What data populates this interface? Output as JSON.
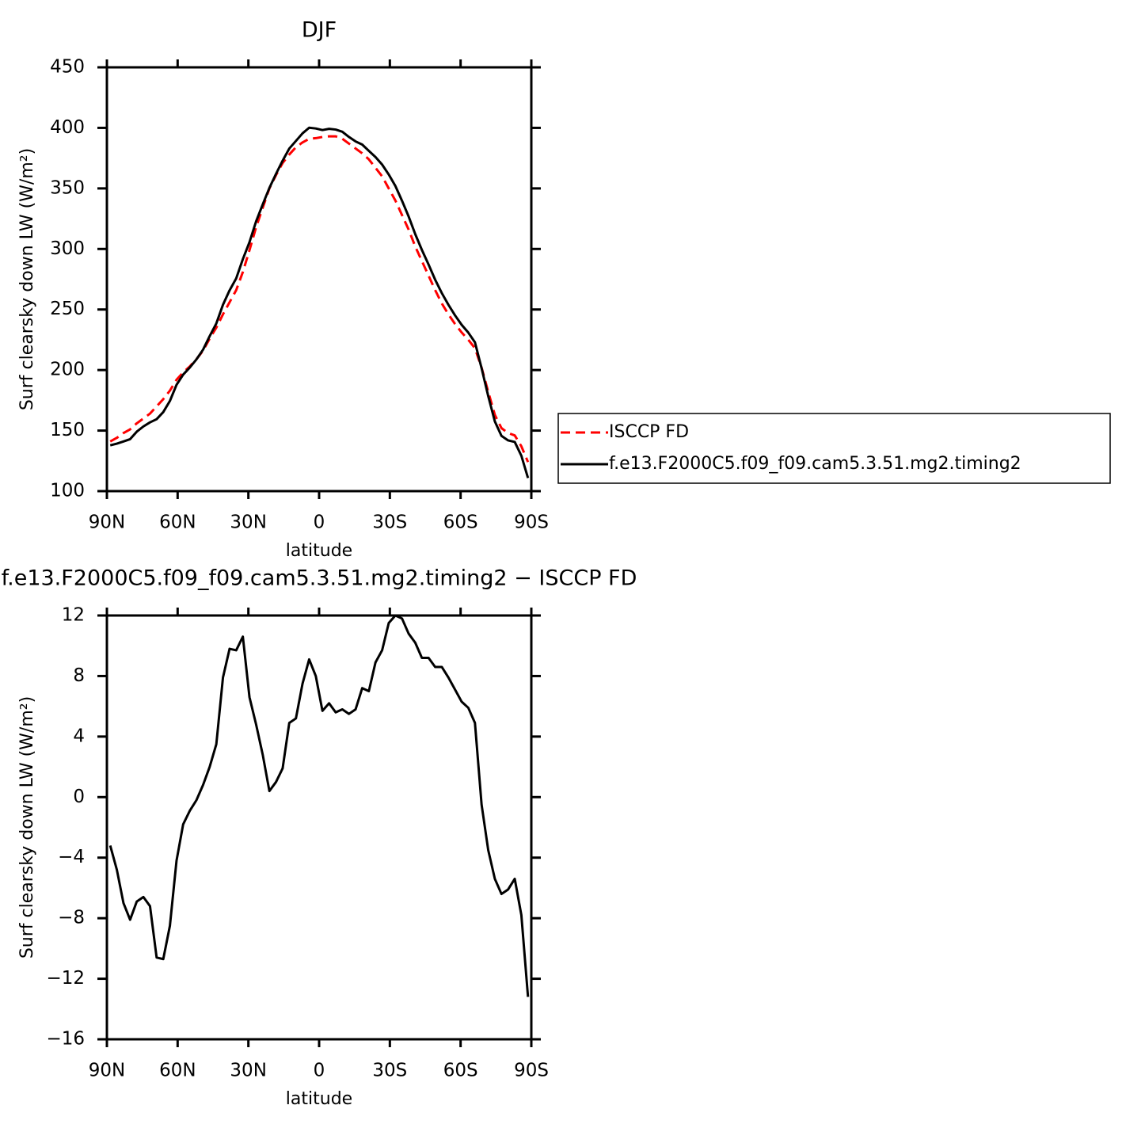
{
  "chart_data": [
    {
      "type": "line",
      "title": "DJF",
      "xlabel": "latitude",
      "ylabel": "Surf clearsky down LW (W/m²)",
      "x": [
        88.59,
        85.78,
        82.97,
        80.16,
        77.34,
        74.53,
        71.72,
        68.91,
        66.09,
        63.28,
        60.47,
        57.66,
        54.84,
        52.03,
        49.22,
        46.41,
        43.59,
        40.78,
        37.97,
        35.16,
        32.34,
        29.53,
        26.72,
        23.91,
        21.09,
        18.28,
        15.47,
        12.66,
        9.84,
        7.03,
        4.22,
        1.41,
        -1.41,
        -4.22,
        -7.03,
        -9.84,
        -12.66,
        -15.47,
        -18.28,
        -21.09,
        -23.91,
        -26.72,
        -29.53,
        -32.34,
        -35.16,
        -37.97,
        -40.78,
        -43.59,
        -46.41,
        -49.22,
        -52.03,
        -54.84,
        -57.66,
        -60.47,
        -63.28,
        -66.09,
        -68.91,
        -71.72,
        -74.53,
        -77.34,
        -80.16,
        -82.97,
        -85.78,
        -88.59
      ],
      "series": [
        {
          "name": "ISCCP FD",
          "color": "#ff0000",
          "dashed": true,
          "values": [
            141,
            144,
            148,
            151,
            156,
            160,
            164,
            170,
            176,
            183,
            192,
            198,
            203,
            209,
            216,
            226,
            235,
            246,
            256,
            266,
            281,
            299,
            318,
            334,
            350,
            361,
            371,
            378,
            384,
            388,
            391,
            391.5,
            392.5,
            393,
            393,
            391,
            387,
            383,
            379,
            374,
            367,
            360,
            350,
            340,
            328,
            316,
            302,
            290,
            278,
            266,
            255,
            246,
            238,
            231,
            225,
            218,
            202,
            182,
            163,
            152,
            148,
            146,
            137,
            124
          ]
        },
        {
          "name": "f.e13.F2000C5.f09_f09.cam5.3.51.mg2.timing2",
          "color": "#000000",
          "dashed": false,
          "values": [
            137.8,
            139.2,
            141.0,
            142.9,
            149.1,
            153.4,
            156.8,
            159.4,
            165.3,
            174.5,
            187.8,
            196.2,
            202.1,
            208.8,
            216.8,
            228.0,
            238.5,
            253.9,
            265.8,
            275.7,
            291.6,
            305.6,
            322.8,
            336.8,
            350.4,
            362.0,
            372.9,
            382.9,
            389.2,
            395.5,
            400.1,
            399.5,
            398.2,
            399.2,
            398.6,
            396.8,
            392.5,
            388.8,
            386.2,
            381.0,
            375.9,
            369.7,
            361.5,
            352.0,
            339.8,
            326.8,
            312.2,
            299.2,
            287.2,
            274.6,
            263.6,
            253.9,
            245.1,
            237.3,
            230.9,
            222.9,
            201.5,
            178.5,
            157.6,
            145.6,
            141.9,
            140.6,
            129.2,
            110.8
          ]
        }
      ],
      "xlim": [
        90,
        -90
      ],
      "xticks": [
        {
          "value": 90,
          "label": "90N"
        },
        {
          "value": 60,
          "label": "60N"
        },
        {
          "value": 30,
          "label": "30N"
        },
        0,
        {
          "value": -30,
          "label": "30S"
        },
        {
          "value": -60,
          "label": "60S"
        },
        {
          "value": -90,
          "label": "90S"
        }
      ],
      "ylim": [
        100,
        450
      ],
      "yticks": [
        100,
        150,
        200,
        250,
        300,
        350,
        400,
        450
      ],
      "legend": "right"
    },
    {
      "type": "line",
      "title": "f.e13.F2000C5.f09_f09.cam5.3.51.mg2.timing2 − ISCCP FD",
      "xlabel": "latitude",
      "ylabel": "Surf clearsky down LW (W/m²)",
      "x": [
        88.59,
        85.78,
        82.97,
        80.16,
        77.34,
        74.53,
        71.72,
        68.91,
        66.09,
        63.28,
        60.47,
        57.66,
        54.84,
        52.03,
        49.22,
        46.41,
        43.59,
        40.78,
        37.97,
        35.16,
        32.34,
        29.53,
        26.72,
        23.91,
        21.09,
        18.28,
        15.47,
        12.66,
        9.84,
        7.03,
        4.22,
        1.41,
        -1.41,
        -4.22,
        -7.03,
        -9.84,
        -12.66,
        -15.47,
        -18.28,
        -21.09,
        -23.91,
        -26.72,
        -29.53,
        -32.34,
        -35.16,
        -37.97,
        -40.78,
        -43.59,
        -46.41,
        -49.22,
        -52.03,
        -54.84,
        -57.66,
        -60.47,
        -63.28,
        -66.09,
        -68.91,
        -71.72,
        -74.53,
        -77.34,
        -80.16,
        -82.97,
        -85.78,
        -88.59
      ],
      "color": "#000000",
      "values": [
        -3.2,
        -4.8,
        -7.0,
        -8.1,
        -6.9,
        -6.6,
        -7.2,
        -10.6,
        -10.7,
        -8.5,
        -4.2,
        -1.8,
        -0.9,
        -0.2,
        0.8,
        2.0,
        3.5,
        7.9,
        9.8,
        9.7,
        10.6,
        6.6,
        4.8,
        2.8,
        0.4,
        1.0,
        1.9,
        4.9,
        5.2,
        7.5,
        9.1,
        8.0,
        5.7,
        6.2,
        5.6,
        5.8,
        5.5,
        5.8,
        7.2,
        7.0,
        8.9,
        9.7,
        11.5,
        12.0,
        11.8,
        10.8,
        10.2,
        9.2,
        9.2,
        8.6,
        8.6,
        7.9,
        7.1,
        6.3,
        5.9,
        4.9,
        -0.5,
        -3.5,
        -5.4,
        -6.4,
        -6.1,
        -5.4,
        -7.8,
        -13.2
      ],
      "xlim": [
        90,
        -90
      ],
      "xticks": [
        {
          "value": 90,
          "label": "90N"
        },
        {
          "value": 60,
          "label": "60N"
        },
        {
          "value": 30,
          "label": "30N"
        },
        0,
        {
          "value": -30,
          "label": "30S"
        },
        {
          "value": -60,
          "label": "60S"
        },
        {
          "value": -90,
          "label": "90S"
        }
      ],
      "ylim": [
        -16,
        12
      ],
      "yticks": [
        {
          "value": -16,
          "label": "−16"
        },
        {
          "value": -12,
          "label": "−12"
        },
        {
          "value": -8,
          "label": "−8"
        },
        {
          "value": -4,
          "label": "−4"
        },
        0,
        4,
        8,
        12
      ]
    }
  ]
}
